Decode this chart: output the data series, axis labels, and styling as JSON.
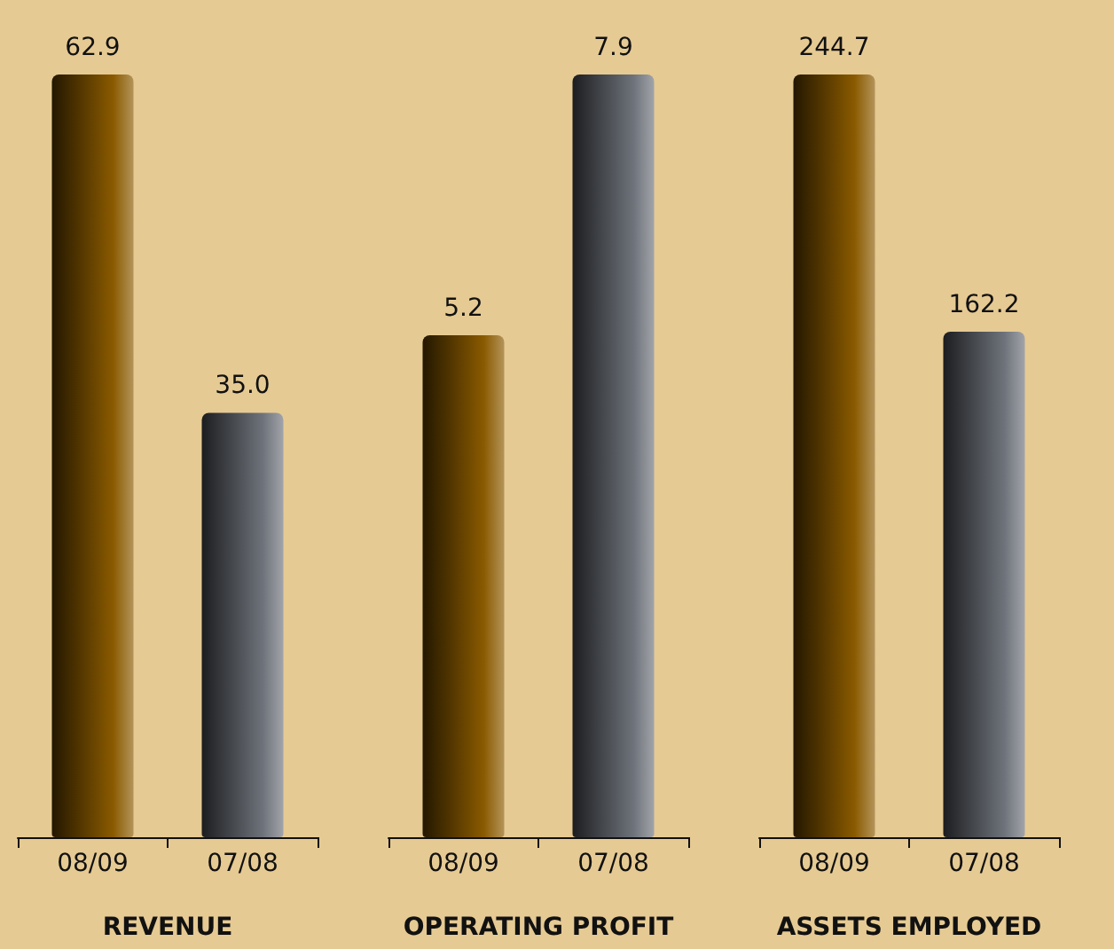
{
  "chart_data": [
    {
      "type": "bar",
      "xlabel": "REVENUE",
      "categories": [
        "08/09",
        "07/08"
      ],
      "values": [
        62.9,
        35.0
      ],
      "value_labels": [
        "62.9",
        "35.0"
      ],
      "colors": [
        "#8a5a00",
        "#6e737b"
      ]
    },
    {
      "type": "bar",
      "xlabel": "OPERATING PROFIT",
      "categories": [
        "08/09",
        "07/08"
      ],
      "values": [
        5.2,
        7.9
      ],
      "value_labels": [
        "5.2",
        "7.9"
      ],
      "colors": [
        "#8a5a00",
        "#6e737b"
      ]
    },
    {
      "type": "bar",
      "xlabel": "ASSETS EMPLOYED",
      "categories": [
        "08/09",
        "07/08"
      ],
      "values": [
        244.7,
        162.2
      ],
      "value_labels": [
        "244.7",
        "162.2"
      ],
      "colors": [
        "#8a5a00",
        "#6e737b"
      ]
    }
  ]
}
